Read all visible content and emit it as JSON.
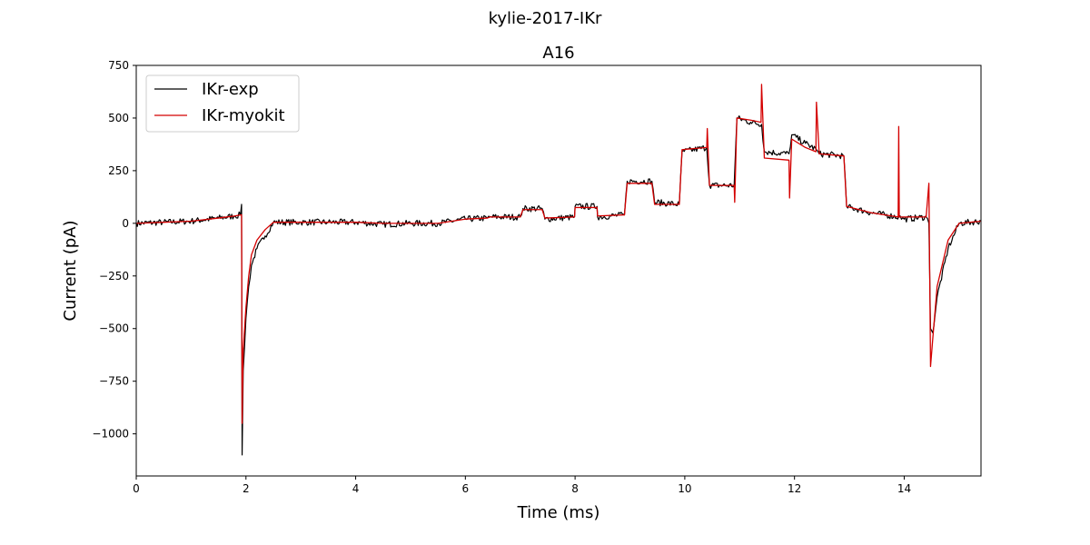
{
  "figure": {
    "suptitle": "kylie-2017-IKr"
  },
  "chart_data": {
    "type": "line",
    "title": "A16",
    "xlabel": "Time (ms)",
    "ylabel": "Current (pA)",
    "xlim": [
      0,
      15.4
    ],
    "ylim": [
      -1200,
      750
    ],
    "xticks": [
      0,
      2,
      4,
      6,
      8,
      10,
      12,
      14
    ],
    "yticks": [
      -1000,
      -750,
      -500,
      -250,
      0,
      250,
      500,
      750
    ],
    "grid": false,
    "legend_position": "top-left",
    "series": [
      {
        "name": "IKr-exp",
        "color": "#000000",
        "x": [
          0,
          0.5,
          1.0,
          1.5,
          1.8,
          1.9,
          1.92,
          1.93,
          1.95,
          2.0,
          2.05,
          2.1,
          2.2,
          2.35,
          2.5,
          3.0,
          3.5,
          4.0,
          4.5,
          5.0,
          5.5,
          6.0,
          6.4,
          6.45,
          7.0,
          7.05,
          7.4,
          7.45,
          7.99,
          8.0,
          8.4,
          8.41,
          8.9,
          8.95,
          9.4,
          9.45,
          9.9,
          9.95,
          10.4,
          10.45,
          10.9,
          10.95,
          11.2,
          11.4,
          11.45,
          11.9,
          11.95,
          12.2,
          12.4,
          12.45,
          12.9,
          12.95,
          13.4,
          13.9,
          14.0,
          14.4,
          14.45,
          14.48,
          14.52,
          14.6,
          14.8,
          15.0,
          15.4
        ],
        "y": [
          0,
          5,
          10,
          25,
          35,
          40,
          90,
          -1100,
          -700,
          -450,
          -300,
          -200,
          -120,
          -60,
          5,
          5,
          5,
          5,
          -5,
          0,
          0,
          20,
          25,
          30,
          30,
          70,
          70,
          20,
          30,
          80,
          80,
          30,
          40,
          200,
          200,
          100,
          90,
          340,
          360,
          180,
          180,
          500,
          480,
          470,
          340,
          330,
          420,
          380,
          350,
          330,
          320,
          80,
          50,
          30,
          20,
          30,
          0,
          -500,
          -520,
          -350,
          -120,
          0,
          10
        ]
      },
      {
        "name": "IKr-myokit",
        "color": "#d40000",
        "x": [
          0,
          0.5,
          1.0,
          1.5,
          1.8,
          1.9,
          1.92,
          1.93,
          1.95,
          2.0,
          2.05,
          2.1,
          2.2,
          2.35,
          2.5,
          3.0,
          3.5,
          4.0,
          4.5,
          5.0,
          5.5,
          6.0,
          6.4,
          6.45,
          7.0,
          7.05,
          7.4,
          7.45,
          7.99,
          8.0,
          8.4,
          8.41,
          8.9,
          8.95,
          9.4,
          9.45,
          9.9,
          9.95,
          10.4,
          10.41,
          10.45,
          10.9,
          10.91,
          10.95,
          11.2,
          11.39,
          11.4,
          11.45,
          11.9,
          11.91,
          11.95,
          12.2,
          12.39,
          12.4,
          12.45,
          12.9,
          12.95,
          13.4,
          13.89,
          13.9,
          13.91,
          14.4,
          14.45,
          14.48,
          14.52,
          14.6,
          14.8,
          15.0,
          15.4
        ],
        "y": [
          0,
          5,
          10,
          25,
          35,
          40,
          40,
          -950,
          -600,
          -400,
          -250,
          -150,
          -80,
          -30,
          5,
          5,
          5,
          5,
          0,
          0,
          0,
          20,
          25,
          30,
          30,
          65,
          65,
          25,
          30,
          75,
          75,
          35,
          40,
          190,
          190,
          90,
          90,
          350,
          360,
          450,
          180,
          180,
          100,
          500,
          490,
          480,
          660,
          310,
          300,
          120,
          400,
          360,
          340,
          575,
          330,
          320,
          80,
          50,
          30,
          460,
          30,
          30,
          190,
          -680,
          -550,
          -300,
          -80,
          0,
          10
        ]
      }
    ]
  }
}
